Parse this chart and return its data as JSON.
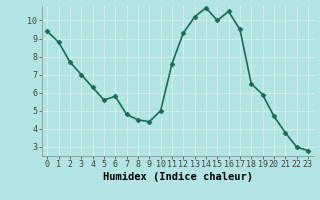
{
  "x": [
    0,
    1,
    2,
    3,
    4,
    5,
    6,
    7,
    8,
    9,
    10,
    11,
    12,
    13,
    14,
    15,
    16,
    17,
    18,
    19,
    20,
    21,
    22,
    23
  ],
  "y": [
    9.4,
    8.8,
    7.7,
    7.0,
    6.3,
    5.6,
    5.8,
    4.8,
    4.5,
    4.4,
    5.0,
    7.6,
    9.3,
    10.2,
    10.7,
    10.0,
    10.5,
    9.5,
    6.5,
    5.9,
    4.7,
    3.8,
    3.0,
    2.8
  ],
  "line_color": "#1a6b5a",
  "marker": "D",
  "marker_size": 2.5,
  "bg_color": "#b2e4e4",
  "grid_color": "#d0eeee",
  "xlabel": "Humidex (Indice chaleur)",
  "xlabel_fontsize": 7.5,
  "xlim": [
    -0.5,
    23.5
  ],
  "ylim": [
    2.5,
    10.8
  ],
  "yticks": [
    3,
    4,
    5,
    6,
    7,
    8,
    9,
    10
  ],
  "xticks": [
    0,
    1,
    2,
    3,
    4,
    5,
    6,
    7,
    8,
    9,
    10,
    11,
    12,
    13,
    14,
    15,
    16,
    17,
    18,
    19,
    20,
    21,
    22,
    23
  ],
  "tick_fontsize": 6,
  "line_width": 1.2
}
